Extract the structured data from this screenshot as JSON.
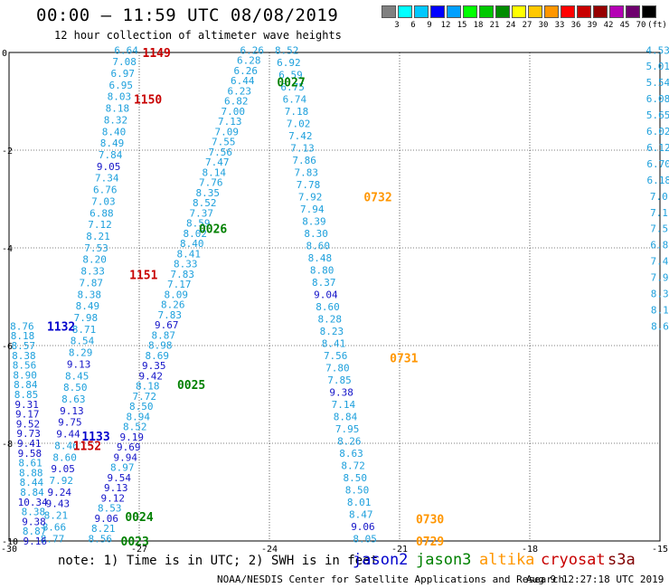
{
  "header": {
    "title": "00:00 – 11:59 UTC 08/08/2019",
    "subtitle": "12 hour collection of altimeter wave heights"
  },
  "colorbar": {
    "labels": [
      "3",
      "6",
      "9",
      "12",
      "15",
      "18",
      "21",
      "24",
      "27",
      "30",
      "33",
      "36",
      "39",
      "42",
      "45",
      "70",
      "(ft)"
    ],
    "colors": [
      "#808080",
      "#00ffff",
      "#00c8ff",
      "#0000ff",
      "#00a0ff",
      "#00ff00",
      "#00c800",
      "#008c00",
      "#ffff00",
      "#ffc800",
      "#ff9600",
      "#ff0000",
      "#c80000",
      "#960000",
      "#b400b4",
      "#6e006e",
      "#000000"
    ]
  },
  "axes": {
    "x_ticks": [
      "-30",
      "-27",
      "-24",
      "-21",
      "-18",
      "-15"
    ],
    "y_ticks": [
      "0",
      "-2",
      "-4",
      "-6",
      "-8",
      "-10"
    ]
  },
  "chart_data": {
    "type": "scatter",
    "xlim": [
      -30,
      -15
    ],
    "ylim": [
      -10,
      0
    ],
    "tracks": [
      {
        "x0": -27.3,
        "y0": 0.05,
        "x1": -29.0,
        "y1": -9.95,
        "labels": [
          "6.64",
          "7.08",
          "6.97",
          "6.95",
          "8.03",
          "8.18",
          "8.32",
          "8.40",
          "8.49",
          "7.84",
          "9.05",
          "7.34",
          "6.76",
          "7.03",
          "6.88",
          "7.12",
          "8.21",
          "7.53",
          "8.20",
          "8.33",
          "7.87",
          "8.38",
          "8.49",
          "7.98",
          "8.71",
          "8.54",
          "8.29",
          "9.13",
          "8.45",
          "8.50",
          "8.63",
          "9.13",
          "9.75",
          "9.44",
          "8.46",
          "8.60",
          "9.05",
          "7.92",
          "9.24",
          "9.43",
          "8.21",
          "8.66",
          "8.77"
        ]
      },
      {
        "x0": -24.4,
        "y0": 0.05,
        "x1": -27.9,
        "y1": -9.95,
        "labels": [
          "6.26",
          "6.28",
          "6.26",
          "6.44",
          "6.23",
          "6.82",
          "7.00",
          "7.13",
          "7.09",
          "7.55",
          "7.56",
          "7.47",
          "8.14",
          "7.76",
          "8.35",
          "8.52",
          "7.37",
          "8.59",
          "8.02",
          "8.40",
          "8.41",
          "8.33",
          "7.83",
          "7.17",
          "8.09",
          "8.26",
          "7.83",
          "9.67",
          "8.87",
          "8.98",
          "8.69",
          "9.35",
          "9.42",
          "8.18",
          "7.72",
          "8.50",
          "8.94",
          "8.52",
          "9.19",
          "9.69",
          "9.94",
          "8.97",
          "9.54",
          "9.13",
          "9.12",
          "8.53",
          "9.06",
          "8.21",
          "8.56"
        ]
      },
      {
        "x0": -23.6,
        "y0": 0.05,
        "x1": -21.8,
        "y1": -9.95,
        "labels": [
          "8.52",
          "6.92",
          "6.59",
          "6.75",
          "6.74",
          "7.18",
          "7.02",
          "7.42",
          "7.13",
          "7.86",
          "7.83",
          "7.78",
          "7.92",
          "7.94",
          "8.39",
          "8.30",
          "8.60",
          "8.48",
          "8.80",
          "8.37",
          "9.04",
          "8.60",
          "8.28",
          "8.23",
          "8.41",
          "7.56",
          "7.80",
          "7.85",
          "9.38",
          "7.14",
          "8.84",
          "7.95",
          "8.26",
          "8.63",
          "8.72",
          "8.50",
          "8.50",
          "8.01",
          "8.47",
          "9.06",
          "8.05"
        ]
      },
      {
        "x0": -29.7,
        "y0": -5.6,
        "x1": -29.4,
        "y1": -10.0,
        "labels": [
          "8.76",
          "8.18",
          "8.57",
          "8.38",
          "8.56",
          "8.90",
          "8.84",
          "8.85",
          "9.31",
          "9.17",
          "9.52",
          "9.73",
          "9.41",
          "9.58",
          "8.61",
          "8.88",
          "8.44",
          "8.84",
          "10.34",
          "8.38",
          "9.38",
          "8.87",
          "9.16"
        ]
      },
      {
        "x0": -15.05,
        "y0": 0.05,
        "x1": -15.0,
        "y1": -5.6,
        "labels": [
          "4.53",
          "5.01",
          "5.54",
          "6.08",
          "5.65",
          "6.02",
          "6.12",
          "6.70",
          "6.18",
          "7.0",
          "7.1",
          "7.5",
          "6.8",
          "7.4",
          "7.9",
          "8.3",
          "8.1",
          "8.6"
        ]
      }
    ],
    "passes": [
      {
        "id": "1149",
        "sat": "cryosat",
        "x": -26.6,
        "y": 0.0
      },
      {
        "id": "1150",
        "sat": "cryosat",
        "x": -26.8,
        "y": -0.95
      },
      {
        "id": "1151",
        "sat": "cryosat",
        "x": -26.9,
        "y": -4.55
      },
      {
        "id": "1152",
        "sat": "cryosat",
        "x": -28.2,
        "y": -8.05
      },
      {
        "id": "0027",
        "sat": "jason3",
        "x": -23.5,
        "y": -0.6
      },
      {
        "id": "0026",
        "sat": "jason3",
        "x": -25.3,
        "y": -3.6
      },
      {
        "id": "0025",
        "sat": "jason3",
        "x": -25.8,
        "y": -6.8
      },
      {
        "id": "0024",
        "sat": "jason3",
        "x": -27.0,
        "y": -9.5
      },
      {
        "id": "0023",
        "sat": "jason3",
        "x": -27.1,
        "y": -10.0
      },
      {
        "id": "0732",
        "sat": "altika",
        "x": -21.5,
        "y": -2.95
      },
      {
        "id": "0731",
        "sat": "altika",
        "x": -20.9,
        "y": -6.25
      },
      {
        "id": "0730",
        "sat": "altika",
        "x": -20.3,
        "y": -9.55
      },
      {
        "id": "0729",
        "sat": "altika",
        "x": -20.3,
        "y": -10.0
      },
      {
        "id": "1132",
        "sat": "jason2",
        "x": -28.8,
        "y": -5.6
      },
      {
        "id": "1133",
        "sat": "jason2",
        "x": -28.0,
        "y": -7.85
      }
    ]
  },
  "satellites": {
    "jason2": {
      "label": "jason2",
      "color": "#0000cc"
    },
    "jason3": {
      "label": "jason3",
      "color": "#008000"
    },
    "altika": {
      "label": "altika",
      "color": "#ff9600"
    },
    "cryosat": {
      "label": "cryosat",
      "color": "#c80000"
    },
    "s3a": {
      "label": "s3a",
      "color": "#800000"
    }
  },
  "footer": {
    "note": "note: 1) Time is in UTC; 2) SWH is in feet",
    "credit": "NOAA/NESDIS Center for Satellite Applications and Research",
    "stamp": "Aug  9 12:27:18 UTC 2019"
  }
}
